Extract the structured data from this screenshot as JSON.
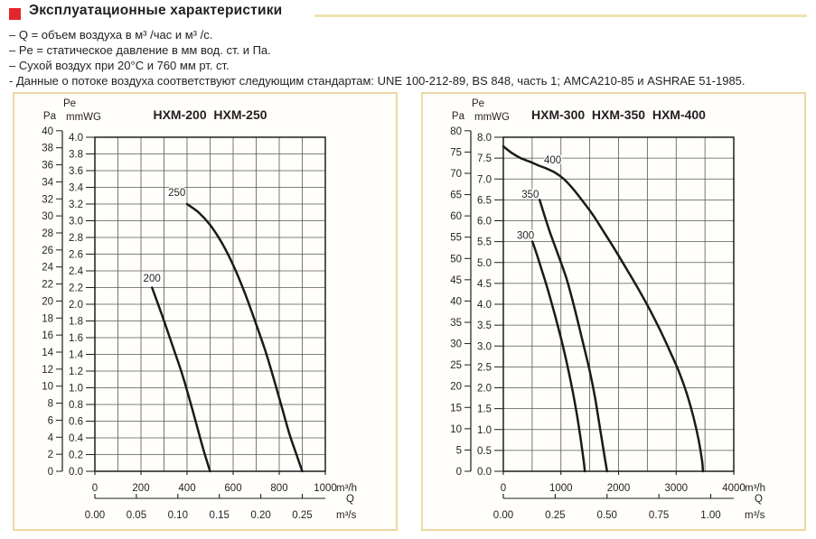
{
  "style": {
    "accent_red": "#e2262b",
    "rule_color": "#f0e3ae",
    "panel_border": "#ecd9a2",
    "grid_color": "#565656",
    "plot_border_color": "#1d1d1f",
    "curve_color": "#1a1a1a",
    "text_color": "#231f20"
  },
  "header": {
    "title": "Эксплуатационные характеристики",
    "notes": [
      "– Q = объем воздуха в м³ /час и м³ /с.",
      "– Pe = статическое давление в мм вод. ст. и Па.",
      "– Сухой воздух при 20°C и 760 мм рт. ст.",
      "- Данные о потоке воздуха соответствуют следующим стандартам: UNE 100-212-89, BS 848, часть 1; AMCA210-85 и ASHRAE 51-1985."
    ]
  },
  "chart_data": [
    {
      "type": "line",
      "title": "HXM-200 HXM-250",
      "pe_label": "Pe",
      "pa_label": "Pa",
      "mmwg_label": "mmWG",
      "q_label": "Q",
      "x_unit_h": "m³/h",
      "x_unit_s": "m³/s",
      "pa_per_mmwg": 9.81,
      "ylim_mmwg": [
        0,
        4.0
      ],
      "xlim_m3h": [
        0,
        1000
      ],
      "x_minor_step_m3h": 100,
      "pa_ticks": [
        40,
        38,
        36,
        34,
        32,
        30,
        28,
        26,
        24,
        22,
        20,
        18,
        16,
        14,
        12,
        10,
        8,
        6,
        4,
        2,
        0
      ],
      "mmwg_ticks": [
        "4.0",
        "3.8",
        "3.6",
        "3.4",
        "3.2",
        "3.0",
        "2.8",
        "2.6",
        "2.4",
        "2.2",
        "2.0",
        "1.8",
        "1.6",
        "1.4",
        "1.2",
        "1.0",
        "0.8",
        "0.6",
        "0.4",
        "0.2",
        "0.0"
      ],
      "x_m3h_ticks": [
        0,
        200,
        400,
        600,
        800,
        1000
      ],
      "x_m3s_ticks": [
        "0.00",
        "0.05",
        "0.10",
        "0.15",
        "0.20",
        "0.25"
      ],
      "m3s_to_m3h": 3600,
      "series": [
        {
          "name": "HXM-200",
          "label": "200",
          "label_at": [
            210,
            2.27
          ],
          "points_m3h_mmwg": [
            [
              248,
              2.2
            ],
            [
              290,
              1.88
            ],
            [
              335,
              1.52
            ],
            [
              378,
              1.17
            ],
            [
              413,
              0.84
            ],
            [
              445,
              0.52
            ],
            [
              473,
              0.24
            ],
            [
              500,
              0
            ]
          ]
        },
        {
          "name": "HXM-250",
          "label": "250",
          "label_at": [
            318,
            3.3
          ],
          "points_m3h_mmwg": [
            [
              400,
              3.2
            ],
            [
              450,
              3.1
            ],
            [
              500,
              2.95
            ],
            [
              550,
              2.74
            ],
            [
              600,
              2.47
            ],
            [
              650,
              2.14
            ],
            [
              700,
              1.76
            ],
            [
              740,
              1.44
            ],
            [
              775,
              1.12
            ],
            [
              810,
              0.78
            ],
            [
              845,
              0.44
            ],
            [
              875,
              0.2
            ],
            [
              900,
              0
            ]
          ]
        }
      ]
    },
    {
      "type": "line",
      "title": "HXM-300 HXM-350 HXM-400",
      "pe_label": "Pe",
      "pa_label": "Pa",
      "mmwg_label": "mmWG",
      "q_label": "Q",
      "x_unit_h": "m³/h",
      "x_unit_s": "m³/s",
      "pa_per_mmwg": 9.81,
      "ylim_mmwg": [
        0,
        8.0
      ],
      "xlim_m3h": [
        0,
        4000
      ],
      "x_minor_step_m3h": 500,
      "pa_ticks": [
        80,
        75,
        70,
        65,
        60,
        55,
        50,
        45,
        40,
        35,
        30,
        25,
        20,
        15,
        10,
        5,
        0
      ],
      "mmwg_ticks": [
        "8.0",
        "7.5",
        "7.0",
        "6.5",
        "6.0",
        "5.5",
        "5.0",
        "4.5",
        "4.0",
        "3.5",
        "3.0",
        "2.5",
        "2.0",
        "1.5",
        "1.0",
        "0.5",
        "0.0"
      ],
      "x_m3h_ticks": [
        0,
        1000,
        2000,
        3000,
        4000
      ],
      "x_m3s_ticks": [
        "0.00",
        "0.25",
        "0.50",
        "0.75",
        "1.00"
      ],
      "m3s_to_m3h": 3600,
      "series": [
        {
          "name": "HXM-300",
          "label": "300",
          "label_at": [
            235,
            5.57
          ],
          "points_m3h_mmwg": [
            [
              505,
              5.5
            ],
            [
              580,
              5.2
            ],
            [
              660,
              4.85
            ],
            [
              740,
              4.5
            ],
            [
              820,
              4.12
            ],
            [
              900,
              3.72
            ],
            [
              980,
              3.3
            ],
            [
              1060,
              2.85
            ],
            [
              1140,
              2.35
            ],
            [
              1220,
              1.8
            ],
            [
              1290,
              1.25
            ],
            [
              1350,
              0.7
            ],
            [
              1395,
              0.25
            ],
            [
              1415,
              0
            ]
          ]
        },
        {
          "name": "HXM-350",
          "label": "350",
          "label_at": [
            318,
            6.55
          ],
          "points_m3h_mmwg": [
            [
              630,
              6.5
            ],
            [
              720,
              6.1
            ],
            [
              810,
              5.72
            ],
            [
              900,
              5.38
            ],
            [
              1000,
              5.0
            ],
            [
              1100,
              4.6
            ],
            [
              1200,
              4.1
            ],
            [
              1300,
              3.55
            ],
            [
              1400,
              2.98
            ],
            [
              1500,
              2.4
            ],
            [
              1590,
              1.78
            ],
            [
              1670,
              1.1
            ],
            [
              1740,
              0.5
            ],
            [
              1800,
              0
            ]
          ]
        },
        {
          "name": "HXM-400",
          "label": "400",
          "label_at": [
            705,
            7.37
          ],
          "points_m3h_mmwg": [
            [
              0,
              7.78
            ],
            [
              150,
              7.62
            ],
            [
              300,
              7.5
            ],
            [
              450,
              7.42
            ],
            [
              600,
              7.33
            ],
            [
              750,
              7.25
            ],
            [
              900,
              7.15
            ],
            [
              1050,
              7.0
            ],
            [
              1200,
              6.78
            ],
            [
              1350,
              6.52
            ],
            [
              1550,
              6.15
            ],
            [
              1750,
              5.72
            ],
            [
              1950,
              5.28
            ],
            [
              2150,
              4.82
            ],
            [
              2350,
              4.35
            ],
            [
              2550,
              3.85
            ],
            [
              2750,
              3.3
            ],
            [
              2900,
              2.85
            ],
            [
              3050,
              2.38
            ],
            [
              3180,
              1.88
            ],
            [
              3300,
              1.3
            ],
            [
              3390,
              0.75
            ],
            [
              3450,
              0.25
            ],
            [
              3465,
              0
            ]
          ]
        }
      ]
    }
  ]
}
